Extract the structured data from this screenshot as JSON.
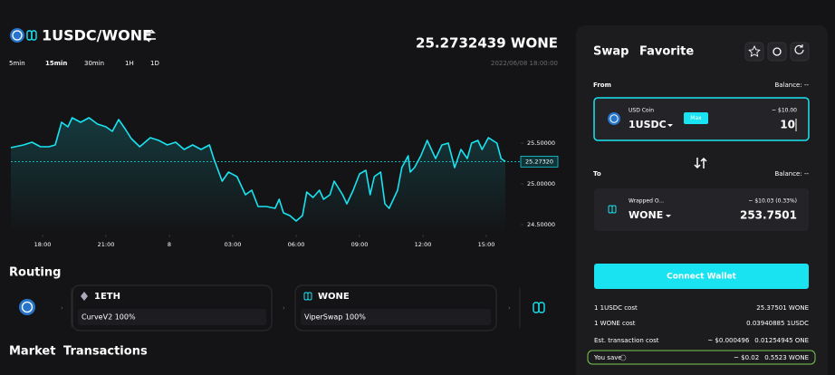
{
  "header": {
    "pair": "1USDC/WONE",
    "price": "25.2732439 WONE",
    "timestamp": "2022/06/08 18:00:00",
    "timeframes": [
      "5min",
      "15min",
      "30min",
      "1H",
      "1D"
    ]
  },
  "price_chart": {
    "type": "line",
    "color": "#19e3f0",
    "x": [
      0,
      0.6,
      1.0,
      1.4,
      1.8,
      2.1,
      2.4,
      2.7,
      2.9,
      3.3,
      3.7,
      4.1,
      4.5,
      4.8,
      5.1,
      5.4,
      5.7,
      6.1,
      6.6,
      7.0,
      7.4,
      7.8,
      8.2,
      8.6,
      9.0,
      9.4,
      9.6,
      10.0,
      10.3,
      10.7,
      11.1,
      11.4,
      11.7,
      12.1,
      12.5,
      12.7,
      12.9,
      13.2,
      13.5,
      13.8,
      14.0,
      14.3,
      14.6,
      14.8,
      15.1,
      15.3,
      15.7,
      15.9,
      16.2,
      16.5,
      16.8,
      17.0,
      17.2,
      17.5,
      17.7,
      17.9,
      18.3,
      18.5,
      18.8,
      18.9,
      19.1,
      19.4,
      19.7,
      20.1,
      20.4,
      20.7,
      21.0,
      21.3,
      21.6,
      21.8,
      22.1,
      22.3,
      22.6,
      23.0,
      23.2,
      23.4
    ],
    "values": [
      25.444,
      25.478,
      25.511,
      25.456,
      25.456,
      25.478,
      25.756,
      25.7,
      25.811,
      25.756,
      25.811,
      25.733,
      25.7,
      25.644,
      25.789,
      25.678,
      25.556,
      25.456,
      25.567,
      25.533,
      25.478,
      25.511,
      25.422,
      25.478,
      25.422,
      25.478,
      25.311,
      25.033,
      25.144,
      25.089,
      24.867,
      24.922,
      24.722,
      24.722,
      24.7,
      24.811,
      24.644,
      24.611,
      24.544,
      24.611,
      24.9,
      24.833,
      24.922,
      24.811,
      24.867,
      25.033,
      24.867,
      24.756,
      24.922,
      25.122,
      25.167,
      24.867,
      25.089,
      25.144,
      24.756,
      24.7,
      24.922,
      25.2,
      25.344,
      25.144,
      25.2,
      25.344,
      25.533,
      25.311,
      25.478,
      25.5,
      25.2,
      25.422,
      25.311,
      25.5,
      25.533,
      25.422,
      25.567,
      25.5,
      25.311,
      25.273
    ],
    "xlim": [
      0,
      23.4
    ],
    "xticks": [
      {
        "value": 1.5,
        "label": "18:00"
      },
      {
        "value": 4.5,
        "label": "21:00"
      },
      {
        "value": 7.5,
        "label": "8"
      },
      {
        "value": 10.5,
        "label": "03:00"
      },
      {
        "value": 13.5,
        "label": "06:00"
      },
      {
        "value": 16.5,
        "label": "09:00"
      },
      {
        "value": 19.5,
        "label": "12:00"
      },
      {
        "value": 22.5,
        "label": "15:00"
      }
    ],
    "ylim": [
      24.4,
      26.0
    ],
    "yticks": [
      {
        "value": 24.5,
        "label": "24.50000"
      },
      {
        "value": 25.0,
        "label": "25.00000"
      },
      {
        "value": 25.5,
        "label": "25.50000"
      }
    ],
    "current_price": {
      "value": 25.2732,
      "label": "25.27320"
    }
  },
  "routing": {
    "title": "Routing",
    "routes": [
      {
        "token": "1ETH",
        "via": "CurveV2 100%"
      },
      {
        "token": "WONE",
        "via": "ViperSwap 100%"
      }
    ]
  },
  "bottom_tabs": [
    "Market",
    "Transactions"
  ],
  "swap": {
    "tabs": [
      "Swap",
      "Favorite"
    ],
    "from": {
      "label": "From",
      "balance": "Balance: --",
      "token_name": "USD Coin",
      "token": "1USDC",
      "max": "Max",
      "usd": "~ $10.00",
      "amount": "10"
    },
    "to": {
      "label": "To",
      "balance": "Balance: --",
      "token_name": "Wrapped O...",
      "token": "WONE",
      "usd": "~ $10.03 (0.33%)",
      "amount": "253.7501"
    },
    "button": "Connect Wallet",
    "stats": [
      {
        "label": "1 1USDC cost",
        "values": [
          "25.37501 WONE"
        ]
      },
      {
        "label": "1 WONE cost",
        "values": [
          "0.03940885 1USDC"
        ]
      },
      {
        "label": "Est. transaction cost",
        "values": [
          "~ $0.000496",
          "0.01254945 ONE"
        ]
      },
      {
        "label": "You save",
        "values": [
          "~ $0.02",
          "0.5523 WONE"
        ]
      }
    ]
  }
}
